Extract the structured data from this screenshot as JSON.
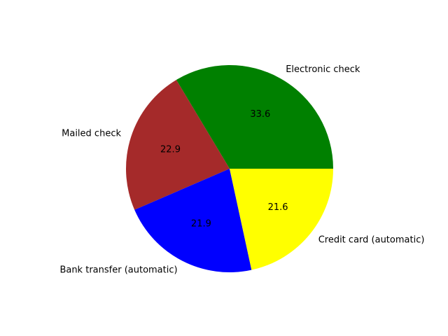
{
  "chart_data": {
    "type": "pie",
    "start_angle_deg": 0,
    "direction": "counterclockwise",
    "slices": [
      {
        "label": "Electronic check",
        "value": 33.6,
        "value_label": "33.6",
        "color": "#008000"
      },
      {
        "label": "Mailed check",
        "value": 22.9,
        "value_label": "22.9",
        "color": "#a52a2a"
      },
      {
        "label": "Bank transfer (automatic)",
        "value": 21.9,
        "value_label": "21.9",
        "color": "#0000ff"
      },
      {
        "label": "Credit card (automatic)",
        "value": 21.6,
        "value_label": "21.6",
        "color": "#ffff00"
      }
    ]
  }
}
